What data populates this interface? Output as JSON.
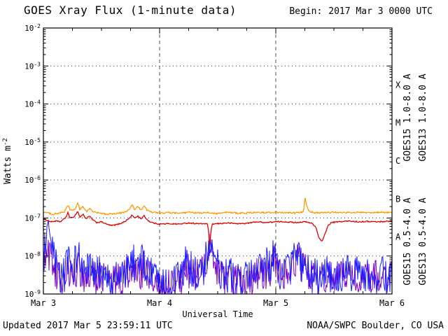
{
  "header": {
    "title": "GOES Xray Flux (1-minute data)",
    "begin_label": "Begin:",
    "begin_value": "2017 Mar 3 0000 UTC"
  },
  "footer": {
    "updated": "Updated 2017 Mar  5 23:59:11 UTC",
    "credit": "NOAA/SWPC Boulder, CO USA"
  },
  "chart_data": {
    "type": "line",
    "title": "GOES Xray Flux (1-minute data)",
    "xlabel": "Universal Time",
    "ylabel": "Watts m^-2",
    "x_range_hours": [
      0,
      72
    ],
    "x_tick_positions_hours": [
      0,
      24,
      48,
      72
    ],
    "x_tick_labels": [
      "Mar 3",
      "Mar 4",
      "Mar 5",
      "Mar 6"
    ],
    "x_minor_tick_hours": 6,
    "y_scale": "log10",
    "y_range_exponents": [
      -9,
      -2
    ],
    "y_tick_exponents": [
      -2,
      -3,
      -4,
      -5,
      -6,
      -7,
      -8,
      -9
    ],
    "flux_classes": [
      {
        "label": "X",
        "log_center": -3.5
      },
      {
        "label": "M",
        "log_center": -4.5
      },
      {
        "label": "C",
        "log_center": -5.5
      },
      {
        "label": "B",
        "log_center": -6.5
      },
      {
        "label": "A",
        "log_center": -7.5
      }
    ],
    "grid": {
      "h_decades": [
        -3,
        -4,
        -5,
        -6,
        -7,
        -8
      ],
      "v_hours": [
        24,
        48
      ]
    },
    "legend_position": "right-vertical",
    "series": [
      {
        "name": "GOES15 long",
        "label": "GOES15 1.0-8.0 A",
        "color": "#dd0000",
        "noise_decades": 0.015,
        "points_log10": [
          [
            0,
            -7.02
          ],
          [
            0.8,
            -7.06
          ],
          [
            1.6,
            -7.1
          ],
          [
            2.5,
            -7.08
          ],
          [
            3.5,
            -7.1
          ],
          [
            4.3,
            -7.02
          ],
          [
            4.8,
            -6.95
          ],
          [
            5.1,
            -6.85
          ],
          [
            5.4,
            -6.98
          ],
          [
            6,
            -7.0
          ],
          [
            6.6,
            -6.92
          ],
          [
            7.1,
            -6.82
          ],
          [
            7.5,
            -6.98
          ],
          [
            8.2,
            -6.9
          ],
          [
            8.8,
            -7.02
          ],
          [
            9.5,
            -6.95
          ],
          [
            10.2,
            -7.05
          ],
          [
            11,
            -7.12
          ],
          [
            12,
            -7.1
          ],
          [
            13,
            -7.16
          ],
          [
            14,
            -7.2
          ],
          [
            15,
            -7.18
          ],
          [
            16,
            -7.14
          ],
          [
            17,
            -7.08
          ],
          [
            17.8,
            -7.0
          ],
          [
            18.3,
            -6.92
          ],
          [
            18.8,
            -7.0
          ],
          [
            19.5,
            -6.95
          ],
          [
            20.2,
            -7.02
          ],
          [
            20.8,
            -6.94
          ],
          [
            21.4,
            -7.04
          ],
          [
            22,
            -7.1
          ],
          [
            23,
            -7.14
          ],
          [
            24,
            -7.16
          ],
          [
            26,
            -7.15
          ],
          [
            28,
            -7.16
          ],
          [
            30,
            -7.13
          ],
          [
            32,
            -7.15
          ],
          [
            33.8,
            -7.15
          ],
          [
            34.1,
            -7.3
          ],
          [
            34.35,
            -7.78
          ],
          [
            34.6,
            -7.35
          ],
          [
            34.9,
            -7.16
          ],
          [
            36,
            -7.15
          ],
          [
            38,
            -7.13
          ],
          [
            40,
            -7.15
          ],
          [
            42,
            -7.14
          ],
          [
            44,
            -7.1
          ],
          [
            46,
            -7.12
          ],
          [
            48,
            -7.1
          ],
          [
            50,
            -7.1
          ],
          [
            52,
            -7.12
          ],
          [
            54,
            -7.1
          ],
          [
            55.5,
            -7.14
          ],
          [
            56.3,
            -7.25
          ],
          [
            57,
            -7.55
          ],
          [
            57.6,
            -7.62
          ],
          [
            58.2,
            -7.4
          ],
          [
            58.8,
            -7.2
          ],
          [
            59.5,
            -7.12
          ],
          [
            61,
            -7.1
          ],
          [
            63,
            -7.08
          ],
          [
            65,
            -7.1
          ],
          [
            67,
            -7.09
          ],
          [
            69,
            -7.1
          ],
          [
            72,
            -7.08
          ]
        ]
      },
      {
        "name": "GOES13 long",
        "label": "GOES13 1.0-8.0 A",
        "color": "#ff9900",
        "noise_decades": 0.02,
        "points_log10": [
          [
            0,
            -6.84
          ],
          [
            1,
            -6.87
          ],
          [
            2,
            -6.9
          ],
          [
            3,
            -6.88
          ],
          [
            4.3,
            -6.84
          ],
          [
            5.1,
            -6.66
          ],
          [
            5.5,
            -6.8
          ],
          [
            6.5,
            -6.78
          ],
          [
            7.1,
            -6.6
          ],
          [
            7.5,
            -6.78
          ],
          [
            8.2,
            -6.7
          ],
          [
            8.9,
            -6.84
          ],
          [
            9.6,
            -6.74
          ],
          [
            10.3,
            -6.84
          ],
          [
            11.5,
            -6.87
          ],
          [
            13,
            -6.9
          ],
          [
            15,
            -6.88
          ],
          [
            16.5,
            -6.86
          ],
          [
            17.8,
            -6.78
          ],
          [
            18.3,
            -6.64
          ],
          [
            18.8,
            -6.78
          ],
          [
            19.5,
            -6.7
          ],
          [
            20.2,
            -6.8
          ],
          [
            20.8,
            -6.66
          ],
          [
            21.4,
            -6.8
          ],
          [
            22.2,
            -6.84
          ],
          [
            24,
            -6.87
          ],
          [
            26,
            -6.86
          ],
          [
            28,
            -6.88
          ],
          [
            30,
            -6.85
          ],
          [
            32,
            -6.87
          ],
          [
            34,
            -6.86
          ],
          [
            36,
            -6.88
          ],
          [
            38,
            -6.85
          ],
          [
            40,
            -6.87
          ],
          [
            42,
            -6.87
          ],
          [
            44,
            -6.85
          ],
          [
            46,
            -6.86
          ],
          [
            48,
            -6.85
          ],
          [
            50,
            -6.86
          ],
          [
            52,
            -6.87
          ],
          [
            53.7,
            -6.84
          ],
          [
            54.05,
            -6.44
          ],
          [
            54.3,
            -6.62
          ],
          [
            54.6,
            -6.76
          ],
          [
            55,
            -6.83
          ],
          [
            56,
            -6.86
          ],
          [
            58,
            -6.86
          ],
          [
            60,
            -6.85
          ],
          [
            62,
            -6.86
          ],
          [
            64,
            -6.85
          ],
          [
            66,
            -6.86
          ],
          [
            68,
            -6.86
          ],
          [
            70,
            -6.85
          ],
          [
            72,
            -6.85
          ]
        ]
      },
      {
        "name": "GOES15 short",
        "label": "GOES15 0.5-4.0 A",
        "color": "#1a1aff",
        "noise_decades": 0.5,
        "points_log10": [
          [
            0,
            -8.1
          ],
          [
            0.4,
            -7.7
          ],
          [
            0.8,
            -7.5
          ],
          [
            1.2,
            -7.6
          ],
          [
            1.7,
            -7.85
          ],
          [
            2.2,
            -8.1
          ],
          [
            2.8,
            -8.4
          ],
          [
            3.5,
            -8.55
          ],
          [
            4.5,
            -8.45
          ],
          [
            5.1,
            -8.1
          ],
          [
            5.6,
            -8.35
          ],
          [
            6.3,
            -8.2
          ],
          [
            7.1,
            -7.9
          ],
          [
            7.6,
            -8.25
          ],
          [
            8.5,
            -8.45
          ],
          [
            9.5,
            -8.3
          ],
          [
            10.5,
            -8.55
          ],
          [
            11.5,
            -8.45
          ],
          [
            12.5,
            -8.6
          ],
          [
            13.5,
            -8.7
          ],
          [
            14.5,
            -8.65
          ],
          [
            15.5,
            -8.6
          ],
          [
            16.5,
            -8.5
          ],
          [
            17.5,
            -8.3
          ],
          [
            18.3,
            -8.0
          ],
          [
            19,
            -8.3
          ],
          [
            19.8,
            -8.35
          ],
          [
            20.6,
            -8.1
          ],
          [
            21.3,
            -8.35
          ],
          [
            22.2,
            -8.5
          ],
          [
            23.2,
            -8.6
          ],
          [
            24.2,
            -8.65
          ],
          [
            25.2,
            -8.7
          ],
          [
            26.2,
            -8.65
          ],
          [
            27.2,
            -8.7
          ],
          [
            28.2,
            -8.6
          ],
          [
            29,
            -8.45
          ],
          [
            29.5,
            -8.0
          ],
          [
            30,
            -8.25
          ],
          [
            31,
            -8.45
          ],
          [
            32,
            -8.5
          ],
          [
            33,
            -8.35
          ],
          [
            33.8,
            -8.0
          ],
          [
            34.35,
            -7.55
          ],
          [
            34.9,
            -7.95
          ],
          [
            35.6,
            -8.2
          ],
          [
            36.5,
            -8.45
          ],
          [
            37.5,
            -8.6
          ],
          [
            38.5,
            -8.5
          ],
          [
            39.5,
            -8.65
          ],
          [
            40.5,
            -8.7
          ],
          [
            41.5,
            -8.65
          ],
          [
            42.5,
            -8.6
          ],
          [
            43.5,
            -8.55
          ],
          [
            44.5,
            -8.45
          ],
          [
            45.2,
            -8.3
          ],
          [
            45.7,
            -8.05
          ],
          [
            46.3,
            -8.3
          ],
          [
            47,
            -8.2
          ],
          [
            47.6,
            -7.95
          ],
          [
            48.3,
            -8.3
          ],
          [
            49.2,
            -8.5
          ],
          [
            50.2,
            -8.45
          ],
          [
            51,
            -8.3
          ],
          [
            51.6,
            -7.95
          ],
          [
            52.1,
            -8.1
          ],
          [
            52.6,
            -7.85
          ],
          [
            53.2,
            -8.2
          ],
          [
            54.2,
            -8.4
          ],
          [
            55.2,
            -8.5
          ],
          [
            56.2,
            -8.55
          ],
          [
            57.2,
            -8.5
          ],
          [
            58.2,
            -8.45
          ],
          [
            59.2,
            -8.5
          ],
          [
            60.2,
            -8.55
          ],
          [
            61.5,
            -8.5
          ],
          [
            63,
            -8.45
          ],
          [
            64.5,
            -8.4
          ],
          [
            66,
            -8.5
          ],
          [
            67.5,
            -8.45
          ],
          [
            69,
            -8.5
          ],
          [
            70.5,
            -8.5
          ],
          [
            72,
            -8.55
          ]
        ]
      },
      {
        "name": "GOES13 short",
        "label": "GOES13 0.5-4.0 A",
        "color": "#7a00c8",
        "noise_decades": 0.45,
        "points_log10": [
          [
            0,
            -8.3
          ],
          [
            0.5,
            -8.0
          ],
          [
            1,
            -7.9
          ],
          [
            1.6,
            -8.1
          ],
          [
            2.3,
            -8.35
          ],
          [
            3,
            -8.55
          ],
          [
            4,
            -8.6
          ],
          [
            5,
            -8.45
          ],
          [
            6,
            -8.55
          ],
          [
            7.1,
            -8.3
          ],
          [
            8,
            -8.5
          ],
          [
            9,
            -8.6
          ],
          [
            10,
            -8.5
          ],
          [
            11,
            -8.6
          ],
          [
            12,
            -8.55
          ],
          [
            13,
            -8.65
          ],
          [
            14,
            -8.7
          ],
          [
            15,
            -8.65
          ],
          [
            16,
            -8.6
          ],
          [
            17,
            -8.5
          ],
          [
            18.3,
            -8.25
          ],
          [
            19,
            -8.45
          ],
          [
            20,
            -8.5
          ],
          [
            20.7,
            -8.3
          ],
          [
            21.5,
            -8.5
          ],
          [
            22.5,
            -8.6
          ],
          [
            23.5,
            -8.65
          ],
          [
            24.5,
            -8.7
          ],
          [
            25.5,
            -8.72
          ],
          [
            26.5,
            -8.68
          ],
          [
            27.5,
            -8.7
          ],
          [
            28.5,
            -8.62
          ],
          [
            29.5,
            -8.3
          ],
          [
            30.5,
            -8.5
          ],
          [
            31.5,
            -8.55
          ],
          [
            32.5,
            -8.45
          ],
          [
            33.8,
            -8.2
          ],
          [
            34.35,
            -7.8
          ],
          [
            35,
            -8.15
          ],
          [
            36,
            -8.45
          ],
          [
            37,
            -8.6
          ],
          [
            38,
            -8.55
          ],
          [
            39,
            -8.65
          ],
          [
            40,
            -8.7
          ],
          [
            41,
            -8.65
          ],
          [
            42,
            -8.6
          ],
          [
            43,
            -8.58
          ],
          [
            44,
            -8.5
          ],
          [
            45.2,
            -8.4
          ],
          [
            46,
            -8.45
          ],
          [
            47,
            -8.35
          ],
          [
            47.6,
            -8.1
          ],
          [
            48.5,
            -8.4
          ],
          [
            49.5,
            -8.55
          ],
          [
            50.5,
            -8.5
          ],
          [
            51.6,
            -8.2
          ],
          [
            52.6,
            -8.05
          ],
          [
            53.5,
            -8.3
          ],
          [
            54.5,
            -8.45
          ],
          [
            55.5,
            -8.55
          ],
          [
            56.5,
            -8.6
          ],
          [
            57.5,
            -8.55
          ],
          [
            58.5,
            -8.5
          ],
          [
            59.5,
            -8.55
          ],
          [
            61,
            -8.6
          ],
          [
            62.5,
            -8.55
          ],
          [
            64,
            -8.5
          ],
          [
            65.5,
            -8.55
          ],
          [
            67,
            -8.5
          ],
          [
            68.5,
            -8.55
          ],
          [
            70,
            -8.52
          ],
          [
            72,
            -8.58
          ]
        ]
      }
    ]
  }
}
